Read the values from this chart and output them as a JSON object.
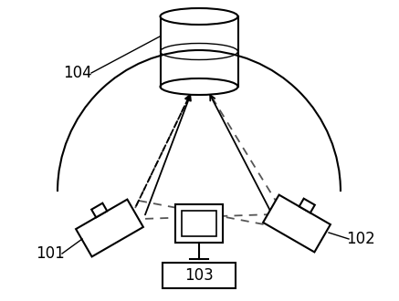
{
  "background_color": "#ffffff",
  "label_104": "104",
  "label_103": "103",
  "label_102": "102",
  "label_101": "101",
  "line_color": "#000000",
  "dashed_color": "#555555",
  "font_size_label": 12
}
